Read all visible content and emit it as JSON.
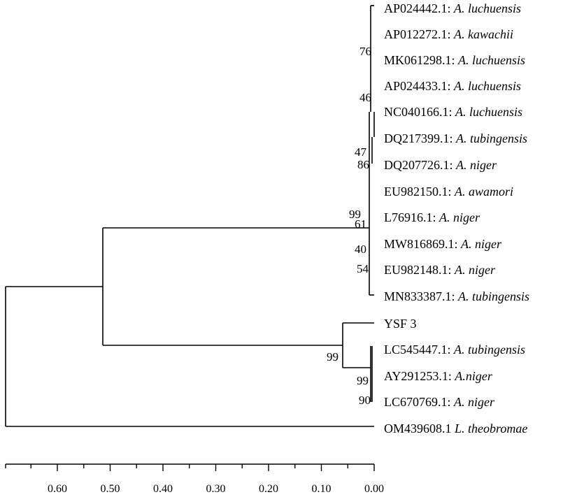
{
  "tree": {
    "leaves": [
      {
        "accession": "AP024442.1: ",
        "species": "A. luchuensis"
      },
      {
        "accession": "AP012272.1: ",
        "species": "A. kawachii"
      },
      {
        "accession": "MK061298.1: ",
        "species": "A. luchuensis"
      },
      {
        "accession": "AP024433.1: ",
        "species": "A. luchuensis"
      },
      {
        "accession": "NC040166.1: ",
        "species": "A. luchuensis"
      },
      {
        "accession": "DQ217399.1: ",
        "species": "A. tubingensis"
      },
      {
        "accession": "DQ207726.1: ",
        "species": "A. niger"
      },
      {
        "accession": "EU982150.1: ",
        "species": "A. awamori"
      },
      {
        "accession": "L76916.1: ",
        "species": "A. niger"
      },
      {
        "accession": "MW816869.1: ",
        "species": "A. niger"
      },
      {
        "accession": "EU982148.1: ",
        "species": "A. niger"
      },
      {
        "accession": "MN833387.1: ",
        "species": "A. tubingensis"
      },
      {
        "accession": "YSF 3",
        "species": ""
      },
      {
        "accession": "LC545447.1: ",
        "species": "A. tubingensis"
      },
      {
        "accession": "AY291253.1: ",
        "species": "A.niger"
      },
      {
        "accession": "LC670769.1: ",
        "species": "A. niger"
      },
      {
        "accession": "OM439608.1 ",
        "species": "L. theobromae"
      }
    ],
    "bootstrap_values": [
      "76",
      "46",
      "47",
      "86",
      "99",
      "61",
      "40",
      "54",
      "99",
      "99",
      "90"
    ],
    "scale": {
      "ticks": [
        "0.60",
        "0.50",
        "0.40",
        "0.30",
        "0.20",
        "0.10",
        "0.00"
      ]
    },
    "colors": {
      "line": "#000000",
      "text": "#000000"
    }
  }
}
